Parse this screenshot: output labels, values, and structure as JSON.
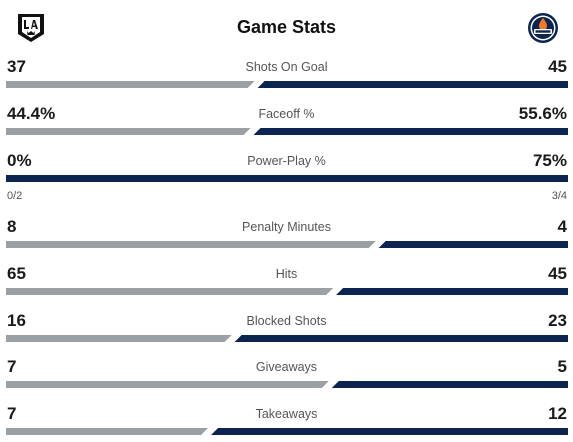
{
  "header": {
    "title": "Game Stats",
    "home_logo_icon": "la-kings-logo-icon",
    "away_logo_icon": "edmonton-oilers-logo-icon"
  },
  "colors": {
    "home_bar": "#9ba0a4",
    "away_bar": "#0b2550"
  },
  "stats": [
    {
      "label": "Shots On Goal",
      "left": "37",
      "right": "45",
      "home_share": 0.4512
    },
    {
      "label": "Faceoff %",
      "left": "44.4%",
      "right": "55.6%",
      "home_share": 0.444
    },
    {
      "label": "Power-Play %",
      "left": "0%",
      "right": "75%",
      "home_share": 0.0,
      "left_sub": "0/2",
      "right_sub": "3/4"
    },
    {
      "label": "Penalty Minutes",
      "left": "8",
      "right": "4",
      "home_share": 0.6667
    },
    {
      "label": "Hits",
      "left": "65",
      "right": "45",
      "home_share": 0.5909
    },
    {
      "label": "Blocked Shots",
      "left": "16",
      "right": "23",
      "home_share": 0.4103
    },
    {
      "label": "Giveaways",
      "left": "7",
      "right": "5",
      "home_share": 0.5833
    },
    {
      "label": "Takeaways",
      "left": "7",
      "right": "12",
      "home_share": 0.3684
    }
  ]
}
